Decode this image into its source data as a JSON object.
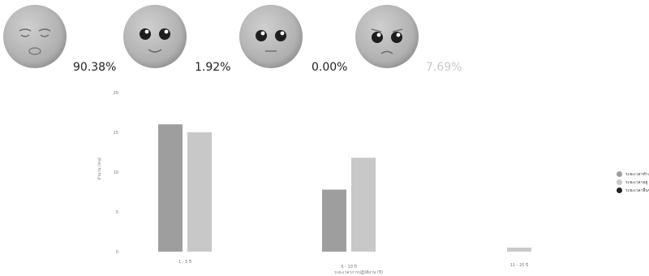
{
  "faces": [
    {
      "icon": "sleeping-face-icon",
      "percent": "90.38%"
    },
    {
      "icon": "smiling-face-icon",
      "percent": "1.92%"
    },
    {
      "icon": "neutral-face-icon",
      "percent": "0.00%"
    },
    {
      "icon": "sad-face-icon",
      "percent": "7.69%"
    }
  ],
  "colors": {
    "series1": "#9e9e9e",
    "series2": "#c8c8c8",
    "series3": "#222222",
    "face": "#b5b5b5",
    "faded_percent": "#c9c9c9"
  },
  "chart_data": {
    "type": "bar",
    "categories": [
      "1 - 5 ปี",
      "6 - 10 ปี",
      "11 - 20 ปี"
    ],
    "series": [
      {
        "name": "ระยะเวลาทำงาน",
        "values": [
          16,
          7.8,
          0
        ]
      },
      {
        "name": "ระยะเวลาอยู่",
        "values": [
          15,
          11.8,
          0.5
        ]
      },
      {
        "name": "ระยะเวลาอื่นๆ",
        "values": [
          0,
          0,
          0
        ]
      }
    ],
    "ylim": [
      0,
      20
    ],
    "yticks": [
      0,
      5,
      10,
      15,
      20
    ],
    "ylabel": "จำนวน (คน)",
    "xlabel": "ระยะเวลาการปฏิบัติงาน (ปี)",
    "grid": false,
    "legend": "right"
  }
}
